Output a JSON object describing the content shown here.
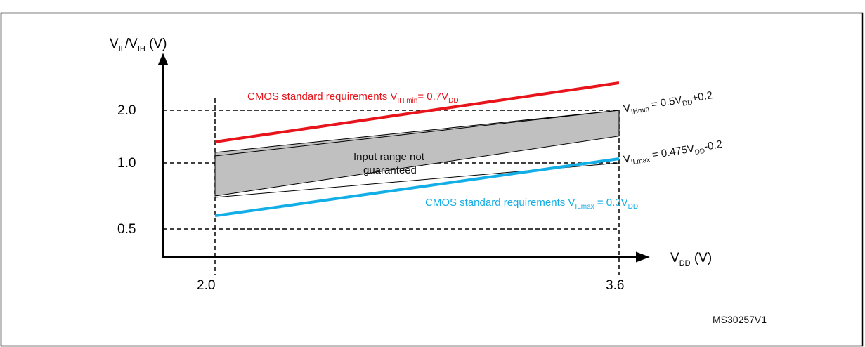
{
  "caption_fragment": "",
  "figure_id": "MS30257V1",
  "colors": {
    "vih_cmos": "#e8141b",
    "vil_cmos": "#14aee6",
    "band_fill": "#c0c0c0",
    "text": "#111111"
  },
  "chart_data": {
    "type": "line",
    "xlabel": {
      "main": "V",
      "sub": "DD",
      "unit": " (V)"
    },
    "ylabel": {
      "main1": "V",
      "sub1": "IL",
      "slash": "/V",
      "sub2": "IH",
      "unit": " (V)"
    },
    "x_ticks": [
      "2.0",
      "3.6"
    ],
    "y_ticks": [
      "2.0",
      "1.0",
      "0.5"
    ],
    "xlim": [
      2.0,
      3.6
    ],
    "series": [
      {
        "key": "vih_cmos",
        "color": "#e8141b",
        "x": [
          2.0,
          3.6
        ],
        "y": [
          1.4,
          2.52
        ]
      },
      {
        "key": "vih_min",
        "color": "#111111",
        "x": [
          2.0,
          3.6
        ],
        "y": [
          1.2,
          2.0
        ]
      },
      {
        "key": "vil_max",
        "color": "#111111",
        "x": [
          2.0,
          3.6
        ],
        "y": [
          0.75,
          1.51
        ]
      },
      {
        "key": "vil_cmos",
        "color": "#14aee6",
        "x": [
          2.0,
          3.6
        ],
        "y": [
          0.6,
          1.08
        ]
      }
    ],
    "region": {
      "label_line1": "Input range not",
      "label_line2": "guaranteed"
    },
    "annotations": {
      "vih_cmos": {
        "prefix": "CMOS standard  requirements V",
        "sub": "IH min",
        "suffix": "= 0.7V",
        "sub2": "DD"
      },
      "vil_cmos": {
        "prefix": "CMOS standard  requirements V",
        "sub": "ILmax",
        "suffix": " = 0.3V",
        "sub2": "DD"
      },
      "vih_min": {
        "v": "V",
        "sub": "IHmin",
        "mid": " = 0.5V",
        "sub2": "DD",
        "tail": "+0.2"
      },
      "vil_max": {
        "v": "V",
        "sub": "ILmax",
        "mid": " = 0.475V",
        "sub2": "DD",
        "tail": "-0.2"
      }
    }
  }
}
